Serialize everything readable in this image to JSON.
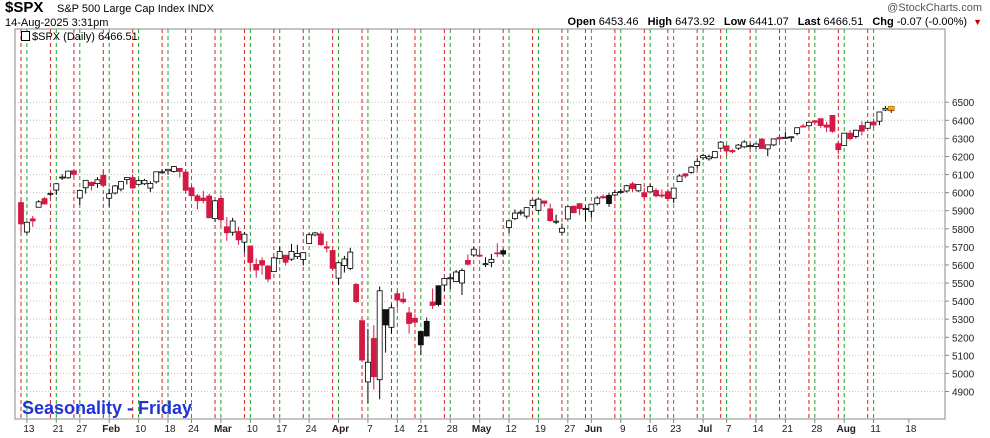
{
  "header": {
    "symbol": "$SPX",
    "description": "S&P 500 Large Cap Index  INDX",
    "brand": "@StockCharts.com",
    "datetime": "14-Aug-2025 3:31pm",
    "ohlc": {
      "open_label": "Open",
      "open": "6453.46",
      "high_label": "High",
      "high": "6473.92",
      "low_label": "Low",
      "low": "6441.07",
      "last_label": "Last",
      "last": "6466.51",
      "chg_label": "Chg",
      "chg": "-0.07 (-0.00%)"
    }
  },
  "legend": {
    "label": "$SPX (Daily) 6466.51"
  },
  "overlay_text": "Seasonality - Friday",
  "colors": {
    "up": "#ffffff",
    "down": "#d41a43",
    "black": "#111111",
    "friday_line": "#d42020",
    "monday_line": "#22a022",
    "grid": "#c4c4c4",
    "overlay_text": "#1f33d6"
  },
  "chart_data": {
    "type": "candlestick",
    "series_name": "$SPX (Daily)",
    "ylim": [
      4800,
      6500
    ],
    "y_ticks": [
      4900,
      5000,
      5100,
      5200,
      5300,
      5400,
      5500,
      5600,
      5700,
      5800,
      5900,
      6000,
      6100,
      6200,
      6300,
      6400,
      6500
    ],
    "x_ticks": [
      "13",
      "21",
      "27",
      "Feb",
      "10",
      "18",
      "24",
      "Mar",
      "10",
      "17",
      "24",
      "Apr",
      "7",
      "14",
      "21",
      "28",
      "May",
      "12",
      "19",
      "27",
      "Jun",
      "9",
      "16",
      "23",
      "Jul",
      "7",
      "14",
      "21",
      "28",
      "Aug",
      "11",
      "18"
    ],
    "x_tick_bold": [
      false,
      false,
      false,
      true,
      false,
      false,
      false,
      true,
      false,
      false,
      false,
      true,
      false,
      false,
      false,
      false,
      true,
      false,
      false,
      false,
      true,
      false,
      false,
      false,
      true,
      false,
      false,
      false,
      false,
      true,
      false,
      false
    ],
    "friday_lines": [
      "Jan 10",
      "Jan 17",
      "Jan 24",
      "Jan 31",
      "Feb 7",
      "Feb 14",
      "Feb 21",
      "Feb 28",
      "Mar 7",
      "Mar 14",
      "Mar 21",
      "Mar 28",
      "Apr 4",
      "Apr 11",
      "Apr 17",
      "Apr 25",
      "May 2",
      "May 9",
      "May 16",
      "May 23",
      "May 30",
      "Jun 6",
      "Jun 13",
      "Jun 20",
      "Jun 27",
      "Jul 3",
      "Jul 11",
      "Jul 18",
      "Jul 25",
      "Aug 1",
      "Aug 8"
    ],
    "monday_lines": [
      "Jan 13",
      "Jan 21",
      "Jan 27",
      "Feb 3",
      "Feb 10",
      "Feb 18",
      "Feb 24",
      "Mar 3",
      "Mar 10",
      "Mar 17",
      "Mar 24",
      "Mar 31",
      "Apr 7",
      "Apr 14",
      "Apr 21",
      "Apr 28",
      "May 5",
      "May 12",
      "May 19",
      "May 27",
      "Jun 2",
      "Jun 9",
      "Jun 16",
      "Jun 23",
      "Jun 30",
      "Jul 7",
      "Jul 14",
      "Jul 21",
      "Jul 28",
      "Aug 4",
      "Aug 11"
    ],
    "candles": [
      [
        "Jan 10",
        5945,
        5960,
        5773,
        5827
      ],
      [
        "Jan 13",
        5782,
        5837,
        5772,
        5836
      ],
      [
        "Jan 14",
        5855,
        5871,
        5811,
        5843
      ],
      [
        "Jan 15",
        5919,
        5958,
        5918,
        5949
      ],
      [
        "Jan 16",
        5967,
        5975,
        5938,
        5937
      ],
      [
        "Jan 17",
        5995,
        6000,
        5978,
        5996
      ],
      [
        "Jan 21",
        6014,
        6051,
        5987,
        6049
      ],
      [
        "Jan 22",
        6081,
        6101,
        6070,
        6086
      ],
      [
        "Jan 23",
        6082,
        6119,
        6076,
        6119
      ],
      [
        "Jan 24",
        6121,
        6128,
        6088,
        6101
      ],
      [
        "Jan 27",
        5970,
        6018,
        5932,
        6012
      ],
      [
        "Jan 28",
        6027,
        6069,
        5994,
        6068
      ],
      [
        "Jan 29",
        6057,
        6062,
        6012,
        6039
      ],
      [
        "Jan 30",
        6050,
        6086,
        6026,
        6071
      ],
      [
        "Jan 31",
        6096,
        6120,
        6030,
        6040
      ],
      [
        "Feb 3",
        5969,
        6023,
        5923,
        5994
      ],
      [
        "Feb 4",
        5998,
        6042,
        5990,
        6037
      ],
      [
        "Feb 5",
        6020,
        6062,
        6007,
        6061
      ],
      [
        "Feb 6",
        6072,
        6084,
        6045,
        6083
      ],
      [
        "Feb 7",
        6083,
        6101,
        6020,
        6026
      ],
      [
        "Feb 10",
        6046,
        6073,
        6045,
        6066
      ],
      [
        "Feb 11",
        6049,
        6076,
        6042,
        6068
      ],
      [
        "Feb 12",
        6025,
        6063,
        6003,
        6051
      ],
      [
        "Feb 13",
        6060,
        6116,
        6050,
        6115
      ],
      [
        "Feb 14",
        6115,
        6128,
        6104,
        6115
      ],
      [
        "Feb 18",
        6121,
        6129,
        6099,
        6129
      ],
      [
        "Feb 19",
        6117,
        6147,
        6111,
        6144
      ],
      [
        "Feb 20",
        6134,
        6134,
        6084,
        6117
      ],
      [
        "Feb 21",
        6114,
        6114,
        6008,
        6013
      ],
      [
        "Feb 24",
        6027,
        6043,
        5977,
        5983
      ],
      [
        "Feb 25",
        5982,
        5992,
        5908,
        5955
      ],
      [
        "Feb 26",
        5970,
        6010,
        5941,
        5956
      ],
      [
        "Feb 27",
        5981,
        5994,
        5858,
        5861
      ],
      [
        "Feb 28",
        5856,
        5959,
        5837,
        5955
      ],
      [
        "Mar 3",
        5968,
        5986,
        5810,
        5850
      ],
      [
        "Mar 4",
        5811,
        5865,
        5733,
        5778
      ],
      [
        "Mar 5",
        5781,
        5861,
        5762,
        5843
      ],
      [
        "Mar 6",
        5785,
        5812,
        5711,
        5739
      ],
      [
        "Mar 7",
        5726,
        5783,
        5667,
        5770
      ],
      [
        "Mar 10",
        5705,
        5705,
        5564,
        5614
      ],
      [
        "Mar 11",
        5603,
        5636,
        5529,
        5572
      ],
      [
        "Mar 12",
        5624,
        5642,
        5546,
        5599
      ],
      [
        "Mar 13",
        5594,
        5598,
        5505,
        5522
      ],
      [
        "Mar 14",
        5563,
        5645,
        5563,
        5639
      ],
      [
        "Mar 17",
        5635,
        5703,
        5631,
        5675
      ],
      [
        "Mar 18",
        5654,
        5654,
        5597,
        5615
      ],
      [
        "Mar 19",
        5632,
        5716,
        5622,
        5675
      ],
      [
        "Mar 20",
        5646,
        5711,
        5633,
        5663
      ],
      [
        "Mar 21",
        5630,
        5670,
        5597,
        5668
      ],
      [
        "Mar 24",
        5719,
        5775,
        5719,
        5767
      ],
      [
        "Mar 25",
        5766,
        5783,
        5759,
        5777
      ],
      [
        "Mar 26",
        5772,
        5786,
        5707,
        5712
      ],
      [
        "Mar 27",
        5700,
        5732,
        5670,
        5693
      ],
      [
        "Mar 28",
        5680,
        5680,
        5572,
        5581
      ],
      [
        "Mar 31",
        5527,
        5616,
        5489,
        5612
      ],
      [
        "Apr 1",
        5597,
        5650,
        5558,
        5633
      ],
      [
        "Apr 2",
        5581,
        5695,
        5571,
        5671
      ],
      [
        "Apr 3",
        5492,
        5500,
        5390,
        5397
      ],
      [
        "Apr 4",
        5292,
        5292,
        5069,
        5074
      ],
      [
        "Apr 7",
        4953,
        5246,
        4835,
        5062
      ],
      [
        "Apr 8",
        5193,
        5267,
        4910,
        4982
      ],
      [
        "Apr 9",
        4965,
        5481,
        4857,
        5457
      ],
      [
        "Apr 10",
        5353,
        5353,
        5115,
        5268
      ],
      [
        "Apr 11",
        5255,
        5381,
        5220,
        5363
      ],
      [
        "Apr 14",
        5441,
        5459,
        5358,
        5406
      ],
      [
        "Apr 15",
        5411,
        5450,
        5386,
        5396
      ],
      [
        "Apr 16",
        5335,
        5367,
        5220,
        5276
      ],
      [
        "Apr 17",
        5305,
        5328,
        5255,
        5283
      ],
      [
        "Apr 21",
        5232,
        5232,
        5101,
        5158
      ],
      [
        "Apr 22",
        5207,
        5309,
        5207,
        5288
      ],
      [
        "Apr 23",
        5395,
        5470,
        5357,
        5376
      ],
      [
        "Apr 24",
        5381,
        5485,
        5371,
        5485
      ],
      [
        "Apr 25",
        5489,
        5528,
        5456,
        5525
      ],
      [
        "Apr 28",
        5529,
        5553,
        5468,
        5529
      ],
      [
        "Apr 29",
        5508,
        5571,
        5506,
        5561
      ],
      [
        "Apr 30",
        5500,
        5581,
        5434,
        5569
      ],
      [
        "May 1",
        5625,
        5658,
        5597,
        5604
      ],
      [
        "May 2",
        5655,
        5700,
        5647,
        5687
      ],
      [
        "May 5",
        5654,
        5683,
        5643,
        5650
      ],
      [
        "May 6",
        5605,
        5643,
        5589,
        5607
      ],
      [
        "May 7",
        5614,
        5661,
        5587,
        5631
      ],
      [
        "May 8",
        5667,
        5720,
        5643,
        5664
      ],
      [
        "May 9",
        5679,
        5691,
        5648,
        5660
      ],
      [
        "May 12",
        5807,
        5845,
        5776,
        5844
      ],
      [
        "May 13",
        5856,
        5906,
        5848,
        5887
      ],
      [
        "May 14",
        5889,
        5906,
        5874,
        5892
      ],
      [
        "May 15",
        5870,
        5917,
        5856,
        5917
      ],
      [
        "May 16",
        5929,
        5958,
        5915,
        5958
      ],
      [
        "May 19",
        5902,
        5969,
        5895,
        5964
      ],
      [
        "May 20",
        5954,
        5955,
        5922,
        5941
      ],
      [
        "May 21",
        5910,
        5939,
        5839,
        5845
      ],
      [
        "May 22",
        5842,
        5878,
        5826,
        5842
      ],
      [
        "May 23",
        5781,
        5829,
        5767,
        5803
      ],
      [
        "May 27",
        5854,
        5924,
        5854,
        5922
      ],
      [
        "May 28",
        5925,
        5929,
        5886,
        5889
      ],
      [
        "May 29",
        5939,
        5943,
        5875,
        5912
      ],
      [
        "May 30",
        5908,
        5923,
        5843,
        5912
      ],
      [
        "Jun 2",
        5897,
        5937,
        5861,
        5936
      ],
      [
        "Jun 3",
        5939,
        5981,
        5929,
        5970
      ],
      [
        "Jun 4",
        5978,
        5990,
        5966,
        5971
      ],
      [
        "Jun 5",
        5985,
        5999,
        5921,
        5939
      ],
      [
        "Jun 6",
        5987,
        6016,
        5978,
        6000
      ],
      [
        "Jun 9",
        6004,
        6021,
        5994,
        6006
      ],
      [
        "Jun 10",
        6009,
        6043,
        6000,
        6038
      ],
      [
        "Jun 11",
        6049,
        6059,
        6002,
        6022
      ],
      [
        "Jun 12",
        6010,
        6045,
        6003,
        6045
      ],
      [
        "Jun 13",
        6000,
        6026,
        5963,
        5977
      ],
      [
        "Jun 16",
        6004,
        6050,
        6004,
        6033
      ],
      [
        "Jun 17",
        6012,
        6024,
        5974,
        5982
      ],
      [
        "Jun 18",
        5987,
        6018,
        5971,
        5981
      ],
      [
        "Jun 20",
        6005,
        6018,
        5952,
        5967
      ],
      [
        "Jun 23",
        5969,
        6028,
        5943,
        6025
      ],
      [
        "Jun 24",
        6061,
        6101,
        6059,
        6092
      ],
      [
        "Jun 25",
        6104,
        6108,
        6080,
        6092
      ],
      [
        "Jun 26",
        6112,
        6146,
        6105,
        6141
      ],
      [
        "Jun 27",
        6150,
        6187,
        6132,
        6173
      ],
      [
        "Jun 30",
        6193,
        6215,
        6181,
        6205
      ],
      [
        "Jul 1",
        6187,
        6210,
        6177,
        6198
      ],
      [
        "Jul 2",
        6193,
        6227,
        6190,
        6227
      ],
      [
        "Jul 3",
        6246,
        6284,
        6241,
        6279
      ],
      [
        "Jul 7",
        6259,
        6262,
        6201,
        6230
      ],
      [
        "Jul 8",
        6233,
        6242,
        6217,
        6226
      ],
      [
        "Jul 9",
        6246,
        6269,
        6236,
        6263
      ],
      [
        "Jul 10",
        6253,
        6290,
        6246,
        6280
      ],
      [
        "Jul 11",
        6256,
        6272,
        6245,
        6260
      ],
      [
        "Jul 14",
        6255,
        6272,
        6241,
        6269
      ],
      [
        "Jul 15",
        6296,
        6302,
        6243,
        6244
      ],
      [
        "Jul 16",
        6242,
        6266,
        6201,
        6264
      ],
      [
        "Jul 17",
        6264,
        6297,
        6257,
        6297
      ],
      [
        "Jul 18",
        6306,
        6316,
        6287,
        6297
      ],
      [
        "Jul 21",
        6305,
        6336,
        6303,
        6306
      ],
      [
        "Jul 22",
        6306,
        6310,
        6281,
        6309
      ],
      [
        "Jul 23",
        6327,
        6360,
        6317,
        6359
      ],
      [
        "Jul 24",
        6368,
        6381,
        6360,
        6363
      ],
      [
        "Jul 25",
        6370,
        6390,
        6364,
        6389
      ],
      [
        "Jul 28",
        6397,
        6401,
        6375,
        6389
      ],
      [
        "Jul 29",
        6409,
        6409,
        6358,
        6371
      ],
      [
        "Jul 30",
        6374,
        6391,
        6335,
        6362
      ],
      [
        "Jul 31",
        6427,
        6427,
        6331,
        6339
      ],
      [
        "Aug 1",
        6271,
        6287,
        6213,
        6238
      ],
      [
        "Aug 4",
        6261,
        6330,
        6261,
        6329
      ],
      [
        "Aug 5",
        6329,
        6346,
        6289,
        6299
      ],
      [
        "Aug 6",
        6311,
        6349,
        6300,
        6345
      ],
      [
        "Aug 7",
        6371,
        6394,
        6316,
        6340
      ],
      [
        "Aug 8",
        6356,
        6390,
        6356,
        6389
      ],
      [
        "Aug 11",
        6391,
        6409,
        6360,
        6374
      ],
      [
        "Aug 12",
        6395,
        6446,
        6373,
        6446
      ],
      [
        "Aug 13",
        6457,
        6480,
        6451,
        6466
      ],
      [
        "Aug 14",
        6453.46,
        6473.92,
        6441.07,
        6466.51
      ]
    ],
    "black_days": [
      "Apr 10",
      "Apr 21",
      "Apr 22",
      "Apr 24",
      "May 9",
      "Jun 5"
    ]
  }
}
